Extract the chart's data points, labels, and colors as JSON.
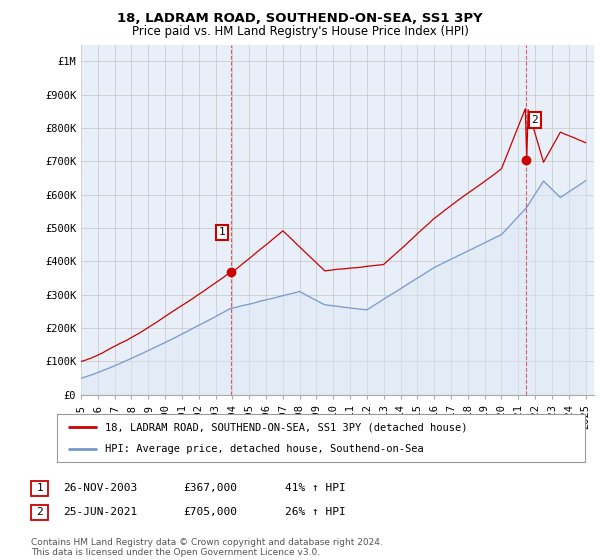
{
  "title": "18, LADRAM ROAD, SOUTHEND-ON-SEA, SS1 3PY",
  "subtitle": "Price paid vs. HM Land Registry's House Price Index (HPI)",
  "ylabel_ticks": [
    "£0",
    "£100K",
    "£200K",
    "£300K",
    "£400K",
    "£500K",
    "£600K",
    "£700K",
    "£800K",
    "£900K",
    "£1M"
  ],
  "ytick_values": [
    0,
    100000,
    200000,
    300000,
    400000,
    500000,
    600000,
    700000,
    800000,
    900000,
    1000000
  ],
  "ylim": [
    0,
    1050000
  ],
  "xlim_start": 1995.0,
  "xlim_end": 2025.5,
  "red_line_color": "#cc0000",
  "blue_line_color": "#7799cc",
  "blue_fill_color": "#dde8f5",
  "vline_color": "#cc0000",
  "grid_color": "#cccccc",
  "plot_bg_color": "#e8eff8",
  "background_color": "#ffffff",
  "sale1_x": 2003.9,
  "sale1_y": 367000,
  "sale1_label": "1",
  "sale2_x": 2021.48,
  "sale2_y": 705000,
  "sale2_label": "2",
  "legend_line1": "18, LADRAM ROAD, SOUTHEND-ON-SEA, SS1 3PY (detached house)",
  "legend_line2": "HPI: Average price, detached house, Southend-on-Sea",
  "table_row1": [
    "1",
    "26-NOV-2003",
    "£367,000",
    "41% ↑ HPI"
  ],
  "table_row2": [
    "2",
    "25-JUN-2021",
    "£705,000",
    "26% ↑ HPI"
  ],
  "footer": "Contains HM Land Registry data © Crown copyright and database right 2024.\nThis data is licensed under the Open Government Licence v3.0.",
  "title_fontsize": 9.5,
  "subtitle_fontsize": 8.5,
  "tick_fontsize": 7.5,
  "legend_fontsize": 7.5,
  "table_fontsize": 8,
  "footer_fontsize": 6.5
}
